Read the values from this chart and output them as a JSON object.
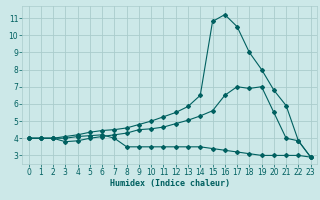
{
  "xlabel": "Humidex (Indice chaleur)",
  "bg_color": "#cce8e8",
  "grid_color": "#aacccc",
  "line_color": "#006060",
  "xlim": [
    -0.5,
    23.5
  ],
  "ylim": [
    2.5,
    11.7
  ],
  "xticks": [
    0,
    1,
    2,
    3,
    4,
    5,
    6,
    7,
    8,
    9,
    10,
    11,
    12,
    13,
    14,
    15,
    16,
    17,
    18,
    19,
    20,
    21,
    22,
    23
  ],
  "yticks": [
    3,
    4,
    5,
    6,
    7,
    8,
    9,
    10,
    11
  ],
  "line1_x": [
    0,
    1,
    2,
    3,
    4,
    5,
    6,
    7,
    8,
    9,
    10,
    11,
    12,
    13,
    14,
    15,
    16,
    17,
    18,
    19,
    20,
    21,
    22,
    23
  ],
  "line1_y": [
    4.0,
    4.0,
    4.0,
    4.1,
    4.2,
    4.35,
    4.45,
    4.5,
    4.6,
    4.8,
    5.0,
    5.25,
    5.5,
    5.85,
    6.5,
    10.8,
    11.2,
    10.5,
    9.0,
    8.0,
    6.8,
    5.9,
    3.85,
    2.9
  ],
  "line2_x": [
    0,
    1,
    2,
    3,
    4,
    5,
    6,
    7,
    8,
    9,
    10,
    11,
    12,
    13,
    14,
    15,
    16,
    17,
    18,
    19,
    20,
    21,
    22,
    23
  ],
  "line2_y": [
    4.0,
    4.0,
    4.0,
    3.8,
    3.85,
    4.0,
    4.1,
    4.2,
    4.3,
    4.5,
    4.55,
    4.65,
    4.85,
    5.05,
    5.3,
    5.6,
    6.5,
    7.0,
    6.9,
    7.0,
    5.5,
    4.0,
    3.85,
    2.9
  ],
  "line3_x": [
    0,
    1,
    2,
    3,
    4,
    5,
    6,
    7,
    8,
    9,
    10,
    11,
    12,
    13,
    14,
    15,
    16,
    17,
    18,
    19,
    20,
    21,
    22,
    23
  ],
  "line3_y": [
    4.0,
    4.0,
    4.0,
    4.0,
    4.1,
    4.15,
    4.2,
    4.0,
    3.5,
    3.5,
    3.5,
    3.5,
    3.5,
    3.5,
    3.5,
    3.4,
    3.3,
    3.2,
    3.1,
    3.0,
    3.0,
    3.0,
    3.0,
    2.9
  ]
}
